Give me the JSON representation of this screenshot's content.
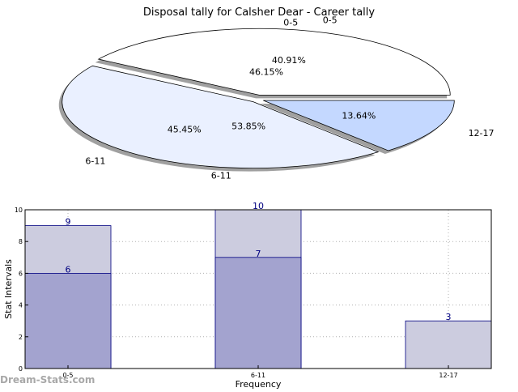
{
  "watermark": "Dream-Stats.com",
  "colors": {
    "axis": "#000000",
    "grid": "#b0b0b0",
    "bar_edge": "#000080",
    "bar_label": "#000080",
    "pie_edge": "#000000",
    "shadow": "#808080"
  },
  "chart_data": [
    {
      "type": "pie",
      "title": "Disposal tally for Calsher Dear - Career tally",
      "shadow": true,
      "rings": [
        {
          "name": "outer",
          "slices": [
            {
              "label": "0-5",
              "value": 40.91,
              "pct": "40.91%",
              "color": "#ffffff"
            },
            {
              "label": "6-11",
              "value": 45.45,
              "pct": "45.45%",
              "color": "#eaf0ff"
            },
            {
              "label": "12-17",
              "value": 13.64,
              "pct": "13.64%",
              "color": "#c4d8ff"
            }
          ]
        },
        {
          "name": "inner",
          "slices": [
            {
              "label": "0-5",
              "value": 46.15,
              "pct": "46.15%",
              "color": "#ffffff"
            },
            {
              "label": "6-11",
              "value": 53.85,
              "pct": "53.85%",
              "color": "#eaf0ff"
            }
          ]
        }
      ]
    },
    {
      "type": "bar",
      "xlabel": "Frequency",
      "ylabel": "Stat Intervals",
      "categories": [
        "0-5",
        "6-11",
        "12-17"
      ],
      "ylim": [
        0,
        10
      ],
      "yticks": [
        0,
        2,
        4,
        6,
        8,
        10
      ],
      "grid": true,
      "series": [
        {
          "values": [
            9,
            10,
            3
          ],
          "color": "#ccccdf"
        },
        {
          "values": [
            6,
            7,
            0
          ],
          "color": "#a3a3cf"
        }
      ]
    }
  ]
}
